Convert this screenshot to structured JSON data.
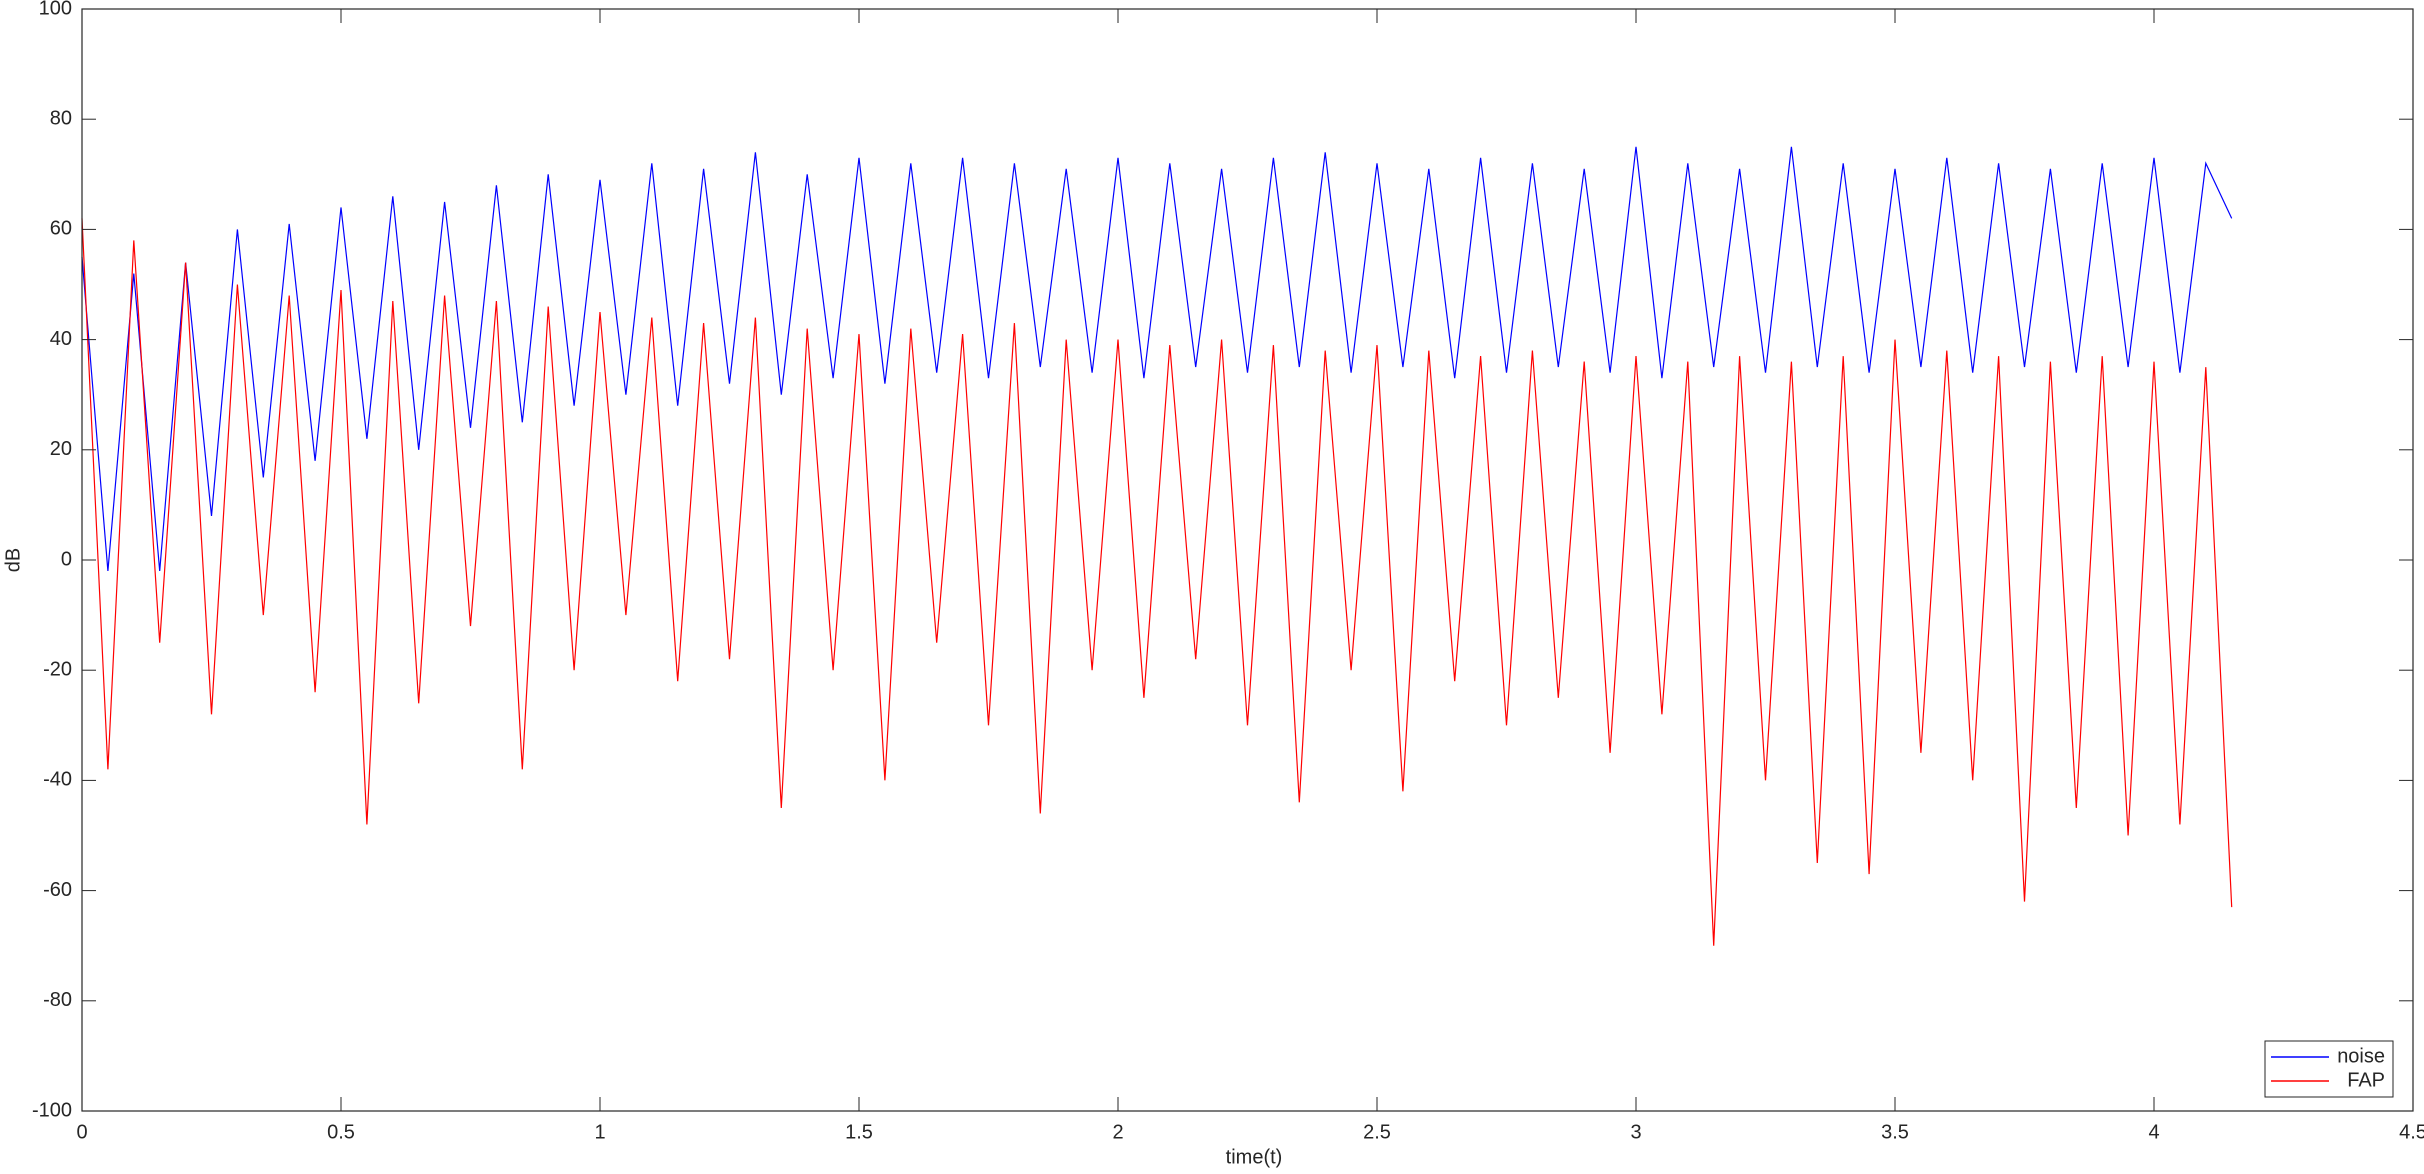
{
  "chart_data": {
    "type": "line",
    "xlabel": "time(t)",
    "ylabel": "dB",
    "x": [
      0,
      0.05,
      0.1,
      0.15,
      0.2,
      0.25,
      0.3,
      0.35,
      0.4,
      0.45,
      0.5,
      0.55,
      0.6,
      0.65,
      0.7,
      0.75,
      0.8,
      0.85,
      0.9,
      0.95,
      1.0,
      1.05,
      1.1,
      1.15,
      1.2,
      1.25,
      1.3,
      1.35,
      1.4,
      1.45,
      1.5,
      1.55,
      1.6,
      1.65,
      1.7,
      1.75,
      1.8,
      1.85,
      1.9,
      1.95,
      2.0,
      2.05,
      2.1,
      2.15,
      2.2,
      2.25,
      2.3,
      2.35,
      2.4,
      2.45,
      2.5,
      2.55,
      2.6,
      2.65,
      2.7,
      2.75,
      2.8,
      2.85,
      2.9,
      2.95,
      3.0,
      3.05,
      3.1,
      3.15,
      3.2,
      3.25,
      3.3,
      3.35,
      3.4,
      3.45,
      3.5,
      3.55,
      3.6,
      3.65,
      3.7,
      3.75,
      3.8,
      3.85,
      3.9,
      3.95,
      4.0,
      4.05,
      4.1,
      4.15
    ],
    "series": [
      {
        "name": "noise",
        "color": "#0000ff",
        "values": [
          55,
          -2,
          52,
          -2,
          54,
          8,
          60,
          15,
          61,
          18,
          64,
          22,
          66,
          20,
          65,
          24,
          68,
          25,
          70,
          28,
          69,
          30,
          72,
          28,
          71,
          32,
          74,
          30,
          70,
          33,
          73,
          32,
          72,
          34,
          73,
          33,
          72,
          35,
          71,
          34,
          73,
          33,
          72,
          35,
          71,
          34,
          73,
          35,
          74,
          34,
          72,
          35,
          71,
          33,
          73,
          34,
          72,
          35,
          71,
          34,
          75,
          33,
          72,
          35,
          71,
          34,
          75,
          35,
          72,
          34,
          71,
          35,
          73,
          34,
          72,
          35,
          71,
          34,
          72,
          35,
          73,
          34,
          72,
          62
        ]
      },
      {
        "name": "FAP",
        "color": "#ff0000",
        "values": [
          62,
          -38,
          58,
          -15,
          54,
          -28,
          50,
          -10,
          48,
          -24,
          49,
          -48,
          47,
          -26,
          48,
          -12,
          47,
          -38,
          46,
          -20,
          45,
          -10,
          44,
          -22,
          43,
          -18,
          44,
          -45,
          42,
          -20,
          41,
          -40,
          42,
          -15,
          41,
          -30,
          43,
          -46,
          40,
          -20,
          40,
          -25,
          39,
          -18,
          40,
          -30,
          39,
          -44,
          38,
          -20,
          39,
          -42,
          38,
          -22,
          37,
          -30,
          38,
          -25,
          36,
          -35,
          37,
          -28,
          36,
          -70,
          37,
          -40,
          36,
          -55,
          37,
          -57,
          40,
          -35,
          38,
          -40,
          37,
          -62,
          36,
          -45,
          37,
          -50,
          36,
          -48,
          35,
          -63
        ]
      }
    ],
    "xlim": [
      0,
      4.5
    ],
    "xticks": [
      0,
      0.5,
      1,
      1.5,
      2,
      2.5,
      3,
      3.5,
      4,
      4.5
    ],
    "ylim": [
      -100,
      100
    ],
    "yticks": [
      -100,
      -80,
      -60,
      -40,
      -20,
      0,
      20,
      40,
      60,
      80,
      100
    ],
    "grid": false,
    "legend": "southeast"
  }
}
